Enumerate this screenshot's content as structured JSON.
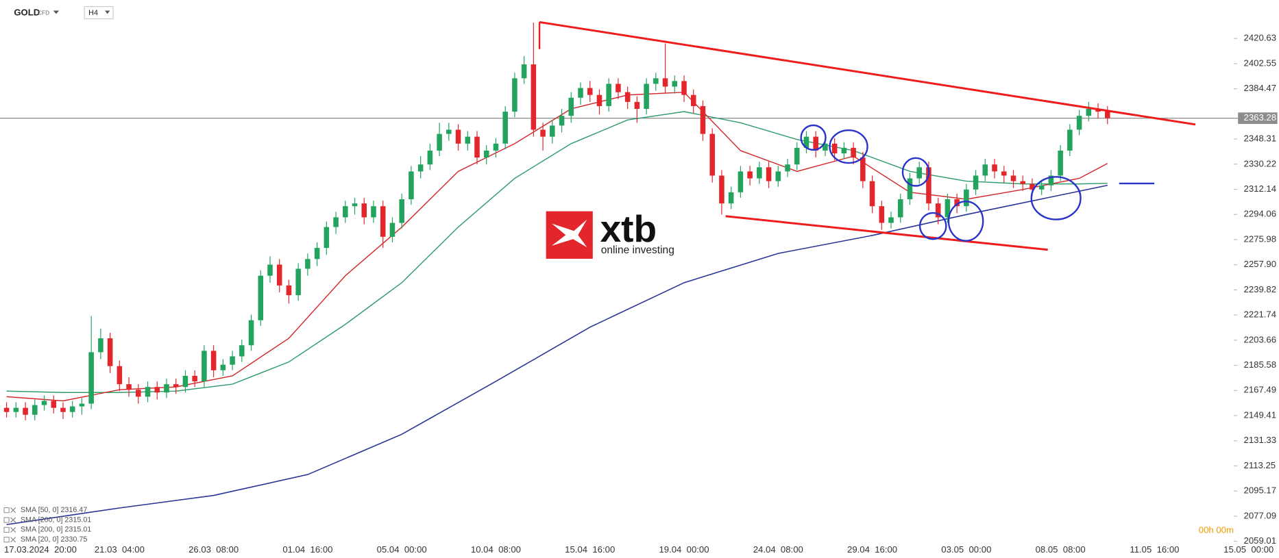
{
  "header": {
    "symbol": "GOLD",
    "instrument": "CFD",
    "timeframe": "H4"
  },
  "logo": {
    "name": "xtb",
    "tagline": "online investing"
  },
  "chart_data": {
    "type": "candlestick",
    "colors": {
      "up": "#22a45f",
      "down": "#e3262b"
    },
    "open": [
      2155,
      2152,
      2155,
      2150,
      2157,
      2160,
      2155,
      2152,
      2156,
      2158,
      2195,
      2205,
      2185,
      2172,
      2168,
      2163,
      2170,
      2166,
      2172,
      2170,
      2178,
      2174,
      2196,
      2182,
      2186,
      2192,
      2200,
      2218,
      2250,
      2258,
      2243,
      2236,
      2255,
      2262,
      2270,
      2285,
      2292,
      2300,
      2302,
      2292,
      2300,
      2278,
      2288,
      2305,
      2325,
      2330,
      2340,
      2352,
      2355,
      2345,
      2350,
      2335,
      2340,
      2345,
      2368,
      2392,
      2402,
      2355,
      2350,
      2358,
      2365,
      2378,
      2385,
      2380,
      2372,
      2388,
      2382,
      2375,
      2370,
      2388,
      2392,
      2386,
      2390,
      2380,
      2372,
      2352,
      2322,
      2302,
      2310,
      2325,
      2320,
      2328,
      2318,
      2325,
      2330,
      2342,
      2350,
      2340,
      2345,
      2338,
      2342,
      2335,
      2318,
      2300,
      2288,
      2292,
      2305,
      2320,
      2328,
      2302,
      2292,
      2305,
      2300,
      2312,
      2322,
      2330,
      2325,
      2322,
      2318,
      2316,
      2312,
      2315,
      2322,
      2340,
      2355,
      2365,
      2370,
      2368
    ],
    "high": [
      2159,
      2159,
      2159,
      2161,
      2164,
      2164,
      2159,
      2160,
      2162,
      2221,
      2212,
      2209,
      2189,
      2177,
      2172,
      2174,
      2174,
      2176,
      2176,
      2182,
      2182,
      2200,
      2200,
      2190,
      2196,
      2204,
      2222,
      2254,
      2264,
      2262,
      2247,
      2259,
      2266,
      2274,
      2289,
      2296,
      2304,
      2306,
      2306,
      2304,
      2304,
      2292,
      2309,
      2329,
      2336,
      2345,
      2360,
      2360,
      2359,
      2354,
      2354,
      2344,
      2349,
      2372,
      2396,
      2408,
      2432,
      2360,
      2362,
      2370,
      2382,
      2389,
      2390,
      2384,
      2392,
      2392,
      2386,
      2379,
      2392,
      2396,
      2417,
      2394,
      2394,
      2384,
      2376,
      2356,
      2326,
      2314,
      2329,
      2329,
      2332,
      2332,
      2329,
      2334,
      2346,
      2354,
      2354,
      2349,
      2349,
      2346,
      2346,
      2339,
      2322,
      2304,
      2296,
      2309,
      2324,
      2332,
      2332,
      2306,
      2309,
      2309,
      2316,
      2326,
      2334,
      2334,
      2329,
      2326,
      2322,
      2320,
      2319,
      2326,
      2344,
      2359,
      2369,
      2375,
      2374,
      2372
    ],
    "low": [
      2148,
      2148,
      2146,
      2146,
      2153,
      2151,
      2147,
      2148,
      2150,
      2154,
      2190,
      2180,
      2167,
      2163,
      2158,
      2159,
      2161,
      2162,
      2165,
      2166,
      2170,
      2170,
      2177,
      2178,
      2182,
      2188,
      2196,
      2214,
      2245,
      2238,
      2230,
      2232,
      2250,
      2257,
      2265,
      2280,
      2288,
      2294,
      2287,
      2288,
      2270,
      2274,
      2284,
      2301,
      2320,
      2326,
      2336,
      2347,
      2340,
      2340,
      2330,
      2330,
      2335,
      2341,
      2364,
      2388,
      2350,
      2340,
      2345,
      2353,
      2360,
      2373,
      2375,
      2366,
      2368,
      2377,
      2370,
      2360,
      2366,
      2383,
      2381,
      2381,
      2375,
      2367,
      2347,
      2317,
      2294,
      2298,
      2306,
      2315,
      2316,
      2313,
      2314,
      2321,
      2326,
      2338,
      2335,
      2336,
      2333,
      2334,
      2330,
      2313,
      2295,
      2283,
      2284,
      2288,
      2301,
      2316,
      2297,
      2287,
      2288,
      2295,
      2296,
      2308,
      2318,
      2320,
      2317,
      2313,
      2311,
      2307,
      2308,
      2311,
      2318,
      2336,
      2351,
      2361,
      2363,
      2359
    ],
    "close": [
      2152,
      2155,
      2150,
      2157,
      2160,
      2155,
      2152,
      2156,
      2158,
      2195,
      2205,
      2185,
      2172,
      2168,
      2163,
      2170,
      2166,
      2172,
      2170,
      2178,
      2174,
      2196,
      2182,
      2186,
      2192,
      2200,
      2218,
      2250,
      2258,
      2243,
      2236,
      2255,
      2262,
      2270,
      2285,
      2292,
      2300,
      2302,
      2292,
      2300,
      2278,
      2288,
      2305,
      2325,
      2330,
      2340,
      2352,
      2355,
      2345,
      2350,
      2335,
      2340,
      2345,
      2368,
      2392,
      2402,
      2355,
      2350,
      2358,
      2365,
      2378,
      2385,
      2380,
      2372,
      2388,
      2382,
      2375,
      2370,
      2388,
      2392,
      2386,
      2390,
      2380,
      2372,
      2352,
      2322,
      2302,
      2310,
      2325,
      2320,
      2328,
      2318,
      2325,
      2330,
      2342,
      2350,
      2340,
      2345,
      2338,
      2342,
      2335,
      2318,
      2300,
      2288,
      2292,
      2305,
      2320,
      2328,
      2302,
      2292,
      2305,
      2300,
      2312,
      2322,
      2330,
      2325,
      2322,
      2318,
      2316,
      2312,
      2315,
      2322,
      2340,
      2355,
      2365,
      2370,
      2368,
      2363.28
    ],
    "series": [
      {
        "name": "SMA [50, 0] 2316.47",
        "color": "#2f9c6b",
        "x": [
          0,
          6,
          12,
          18,
          24,
          30,
          36,
          42,
          48,
          54,
          60,
          66,
          72,
          78,
          84,
          90,
          96,
          102,
          108,
          114,
          117
        ],
        "values": [
          2167,
          2166,
          2166,
          2167,
          2172,
          2188,
          2215,
          2245,
          2285,
          2320,
          2345,
          2362,
          2368,
          2360,
          2348,
          2340,
          2325,
          2318,
          2316,
          2316,
          2316.47
        ]
      },
      {
        "name": "SMA [200, 0] 2315.01",
        "color": "#2b3797",
        "x": [
          0,
          12,
          22,
          32,
          42,
          52,
          62,
          72,
          82,
          92,
          102,
          112,
          117
        ],
        "values": [
          2071,
          2083,
          2092,
          2107,
          2136,
          2174,
          2213,
          2245,
          2266,
          2279,
          2294,
          2308,
          2315.01
        ]
      },
      {
        "name": "SMA [200, 0] 2315.01",
        "color": "#2b3797",
        "x": [
          0,
          12,
          22,
          32,
          42,
          52,
          62,
          72,
          82,
          92,
          102,
          112,
          117
        ],
        "values": [
          2071,
          2083,
          2092,
          2107,
          2136,
          2174,
          2213,
          2245,
          2266,
          2279,
          2294,
          2308,
          2315.01
        ]
      },
      {
        "name": "SMA [20, 0] 2330.75",
        "color": "#d3282b",
        "x": [
          0,
          6,
          12,
          18,
          24,
          30,
          36,
          42,
          48,
          54,
          60,
          66,
          72,
          78,
          84,
          90,
          96,
          102,
          108,
          114,
          117
        ],
        "values": [
          2163,
          2160,
          2168,
          2170,
          2178,
          2205,
          2250,
          2285,
          2325,
          2345,
          2370,
          2380,
          2382,
          2340,
          2325,
          2336,
          2310,
          2305,
          2312,
          2320,
          2330.75
        ]
      }
    ],
    "current_price": 2363.28,
    "countdown": "00h 00m",
    "xlim": [
      -0.7,
      130
    ],
    "xticks": [
      {
        "value": 0,
        "label": "17.03.2024  20:00"
      },
      {
        "value": 12,
        "label": "21.03  04:00"
      },
      {
        "value": 22,
        "label": "26.03  08:00"
      },
      {
        "value": 32,
        "label": "01.04  16:00"
      },
      {
        "value": 42,
        "label": "05.04  00:00"
      },
      {
        "value": 52,
        "label": "10.04  08:00"
      },
      {
        "value": 62,
        "label": "15.04  16:00"
      },
      {
        "value": 72,
        "label": "19.04  00:00"
      },
      {
        "value": 82,
        "label": "24.04  08:00"
      },
      {
        "value": 92,
        "label": "29.04  16:00"
      },
      {
        "value": 102,
        "label": "03.05  00:00"
      },
      {
        "value": 112,
        "label": "08.05  08:00"
      },
      {
        "value": 122,
        "label": "11.05  16:00"
      },
      {
        "value": 132,
        "label": "15.05  00:00"
      }
    ],
    "ylim": [
      2057.83,
      2448.29
    ],
    "yticks": [
      2059.01,
      2077.09,
      2095.17,
      2113.25,
      2131.33,
      2149.41,
      2167.49,
      2185.58,
      2203.66,
      2221.74,
      2239.82,
      {
        "value": 2257.9,
        "label": "2257.90"
      },
      2275.98,
      2294.06,
      2312.14,
      2330.22,
      2348.31,
      2384.47,
      2402.55,
      2420.63
    ]
  }
}
